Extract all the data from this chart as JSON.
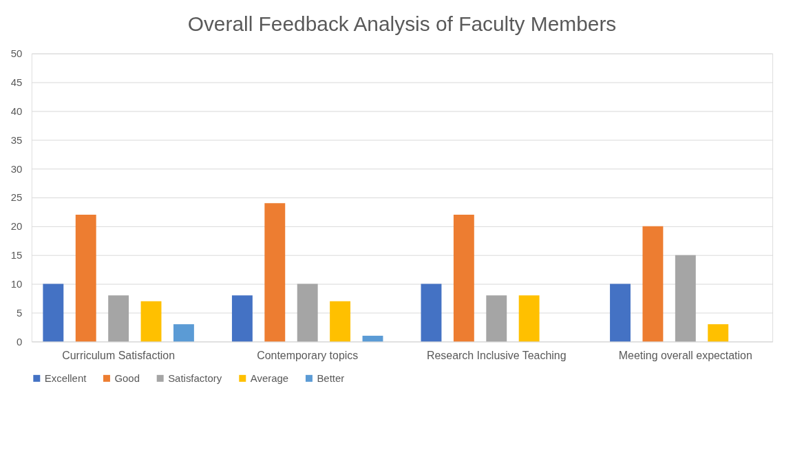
{
  "chart_data": {
    "type": "bar",
    "title": "Overall Feedback Analysis of Faculty Members",
    "categories": [
      "Curriculum Satisfaction",
      "Contemporary topics",
      "Research Inclusive Teaching",
      "Meeting overall expectation"
    ],
    "series": [
      {
        "name": "Excellent",
        "color": "#4472c4",
        "values": [
          10,
          8,
          10,
          10
        ]
      },
      {
        "name": "Good",
        "color": "#ed7d31",
        "values": [
          22,
          24,
          22,
          20
        ]
      },
      {
        "name": "Satisfactory",
        "color": "#a5a5a5",
        "values": [
          8,
          10,
          8,
          15
        ]
      },
      {
        "name": "Average",
        "color": "#ffc000",
        "values": [
          7,
          7,
          8,
          3
        ]
      },
      {
        "name": "Better",
        "color": "#5b9bd5",
        "values": [
          3,
          1,
          null,
          null
        ]
      }
    ],
    "ylim": [
      0,
      50
    ],
    "yticks": [
      0,
      5,
      10,
      15,
      20,
      25,
      30,
      35,
      40,
      45,
      50
    ],
    "grid": "y",
    "legend": "bottom"
  }
}
